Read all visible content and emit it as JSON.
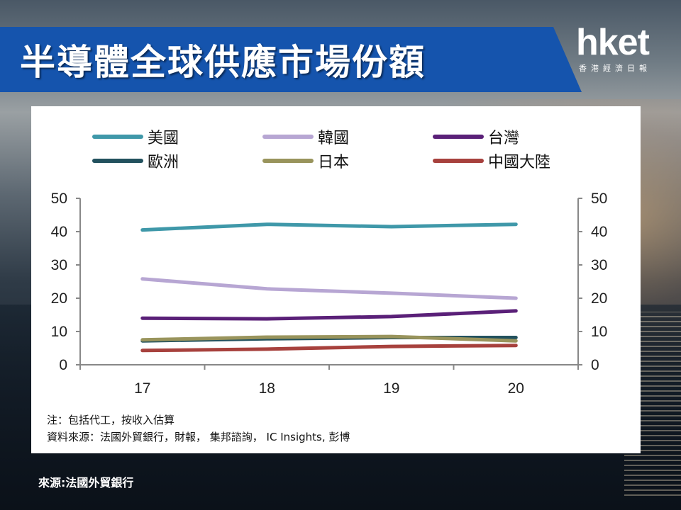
{
  "title": "半導體全球供應市場份額",
  "logo": {
    "main": "hket",
    "sub": "香港經濟日報"
  },
  "colors": {
    "banner": "#1554ad",
    "美國": "#3f98a9",
    "韓國": "#b7a6d3",
    "台灣": "#5a2078",
    "歐洲": "#22515e",
    "日本": "#99945c",
    "中國大陸": "#a7413d"
  },
  "chart_data": {
    "type": "line",
    "categories": [
      "17",
      "18",
      "19",
      "20"
    ],
    "ylim": [
      0,
      50
    ],
    "yticks": [
      "0",
      "10",
      "20",
      "30",
      "40",
      "50"
    ],
    "secondary_yticks": [
      "0",
      "10",
      "20",
      "30",
      "40",
      "50"
    ],
    "grid": false,
    "legend_position": "top",
    "series": [
      {
        "name": "美國",
        "values": [
          40.5,
          42.2,
          41.5,
          42.2
        ]
      },
      {
        "name": "韓國",
        "values": [
          25.8,
          22.8,
          21.5,
          20.0
        ]
      },
      {
        "name": "台灣",
        "values": [
          14.0,
          13.8,
          14.5,
          16.2
        ]
      },
      {
        "name": "歐洲",
        "values": [
          7.2,
          7.8,
          8.2,
          8.2
        ]
      },
      {
        "name": "日本",
        "values": [
          7.5,
          8.3,
          8.5,
          7.2
        ]
      },
      {
        "name": "中國大陸",
        "values": [
          4.3,
          4.7,
          5.5,
          5.8
        ]
      }
    ]
  },
  "notes": {
    "note1": "注：包括代工，按收入估算",
    "note2": "資料來源：法國外貿銀行，財報， 集邦諮詢， IC Insights, 彭博"
  },
  "source": "來源:法國外貿銀行"
}
